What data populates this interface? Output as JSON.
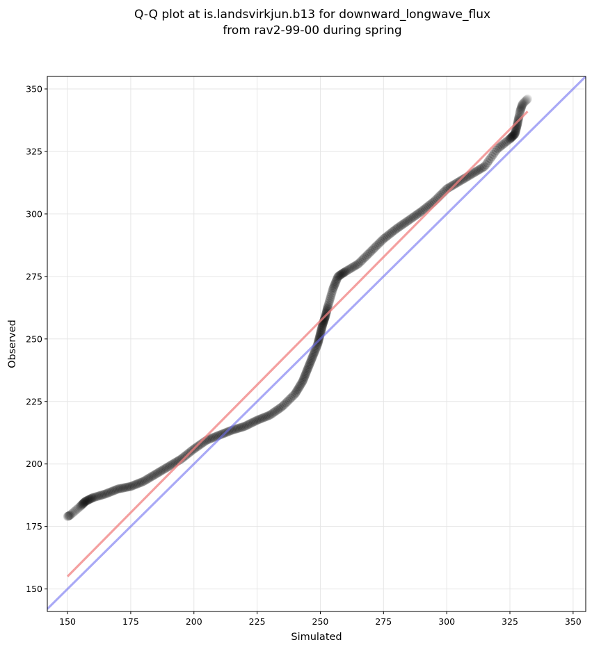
{
  "chart_data": {
    "type": "scatter",
    "title": "Q-Q plot at is.landsvirkjun.b13 for downward_longwave_flux",
    "subtitle": "from rav2-99-00 during spring",
    "xlabel": "Simulated",
    "ylabel": "Observed",
    "xlim": [
      142,
      355
    ],
    "ylim": [
      141,
      355
    ],
    "xticks": [
      150,
      175,
      200,
      225,
      250,
      275,
      300,
      325,
      350
    ],
    "yticks": [
      150,
      175,
      200,
      225,
      250,
      275,
      300,
      325,
      350
    ],
    "grid": true,
    "colors": {
      "points": "#000000",
      "fit_line": "#f08080",
      "identity_line": "#7070f0"
    },
    "quantile_curve": {
      "x": [
        150,
        151,
        155,
        157,
        160,
        165,
        170,
        175,
        180,
        185,
        190,
        195,
        200,
        205,
        210,
        215,
        220,
        225,
        230,
        235,
        240,
        243,
        245,
        247,
        249,
        250,
        251,
        252,
        253,
        255,
        257,
        260,
        265,
        270,
        275,
        280,
        285,
        290,
        295,
        300,
        305,
        310,
        315,
        320,
        325,
        327,
        328,
        329,
        330,
        332
      ],
      "y": [
        179,
        179.5,
        183,
        185,
        186.5,
        188,
        190,
        191,
        193,
        196,
        199,
        202,
        206,
        209.5,
        211.5,
        213.5,
        215,
        217.5,
        219.5,
        223,
        228,
        233,
        238,
        243,
        248,
        252,
        256,
        259,
        263,
        270,
        275,
        277,
        280,
        285,
        290,
        294,
        297.5,
        301,
        305,
        310,
        313,
        316,
        319,
        326,
        330,
        332,
        336,
        341,
        344,
        346
      ]
    },
    "fit_line": {
      "x": [
        150,
        332
      ],
      "y": [
        155,
        341
      ]
    },
    "identity_line": {
      "x": [
        142,
        355
      ],
      "y": [
        142,
        355
      ]
    }
  }
}
